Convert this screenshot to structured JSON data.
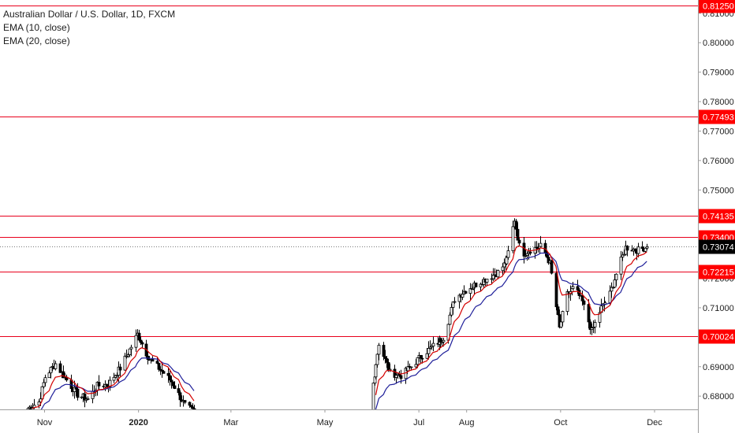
{
  "legend": {
    "title": "Australian Dollar / U.S. Dollar, 1D, FXCM",
    "ema10": "EMA (10, close)",
    "ema20": "EMA (20, close)"
  },
  "colors": {
    "candle": "#000000",
    "ema10": "#d40000",
    "ema20": "#1f1f9a",
    "level_line": "#e8001c",
    "level_badge": "#ff0000",
    "price_badge": "#000000",
    "axis_text": "#1e1e1e"
  },
  "chart_data": {
    "type": "candlestick",
    "symbol": "Australian Dollar / U.S. Dollar",
    "timeframe": "1D",
    "source": "FXCM",
    "grid": false,
    "ylim": [
      0.6755,
      0.8145
    ],
    "yticks": [
      "0.68000",
      "0.69000",
      "0.70000",
      "0.71000",
      "0.72000",
      "0.73000",
      "0.74000",
      "0.75000",
      "0.76000",
      "0.77000",
      "0.78000",
      "0.79000",
      "0.80000",
      "0.81000"
    ],
    "xticks": [
      "Nov",
      "2020",
      "Mar",
      "May",
      "Jul",
      "Aug",
      "Oct",
      "Dec"
    ],
    "horizontal_levels": [
      {
        "label": "0.81250",
        "value": 0.8125
      },
      {
        "label": "0.77493",
        "value": 0.77493
      },
      {
        "label": "0.74135",
        "value": 0.74135
      },
      {
        "label": "0.73400",
        "value": 0.734
      },
      {
        "label": "0.72215",
        "value": 0.72215
      },
      {
        "label": "0.70024",
        "value": 0.70024
      }
    ],
    "last_price": {
      "label": "0.73074",
      "value": 0.73074
    },
    "price_path": {
      "dates": [
        "2019-10-20",
        "2019-10-28",
        "2019-11-01",
        "2019-11-08",
        "2019-11-15",
        "2019-11-22",
        "2019-11-29",
        "2019-12-05",
        "2019-12-12",
        "2019-12-20",
        "2019-12-31",
        "2020-01-08",
        "2020-01-15",
        "2020-01-22",
        "2020-01-31",
        "2020-02-07",
        "2020-05-29",
        "2020-06-05",
        "2020-06-12",
        "2020-06-19",
        "2020-06-26",
        "2020-07-03",
        "2020-07-10",
        "2020-07-17",
        "2020-07-24",
        "2020-07-31",
        "2020-08-07",
        "2020-08-14",
        "2020-08-21",
        "2020-08-27",
        "2020-09-01",
        "2020-09-05",
        "2020-09-12",
        "2020-09-19",
        "2020-09-24",
        "2020-09-30",
        "2020-10-05",
        "2020-10-10",
        "2020-10-15",
        "2020-10-21",
        "2020-10-27",
        "2020-11-01",
        "2020-11-06",
        "2020-11-12",
        "2020-11-20",
        "2020-11-26"
      ],
      "closes": [
        0.6755,
        0.678,
        0.6865,
        0.691,
        0.6855,
        0.6805,
        0.679,
        0.6835,
        0.684,
        0.6895,
        0.701,
        0.6925,
        0.689,
        0.685,
        0.677,
        0.674,
        0.674,
        0.698,
        0.688,
        0.687,
        0.69,
        0.694,
        0.697,
        0.7,
        0.713,
        0.716,
        0.718,
        0.72,
        0.722,
        0.726,
        0.74,
        0.728,
        0.73,
        0.731,
        0.725,
        0.703,
        0.7145,
        0.717,
        0.712,
        0.702,
        0.71,
        0.713,
        0.7215,
        0.7305,
        0.7295,
        0.7307
      ]
    }
  }
}
